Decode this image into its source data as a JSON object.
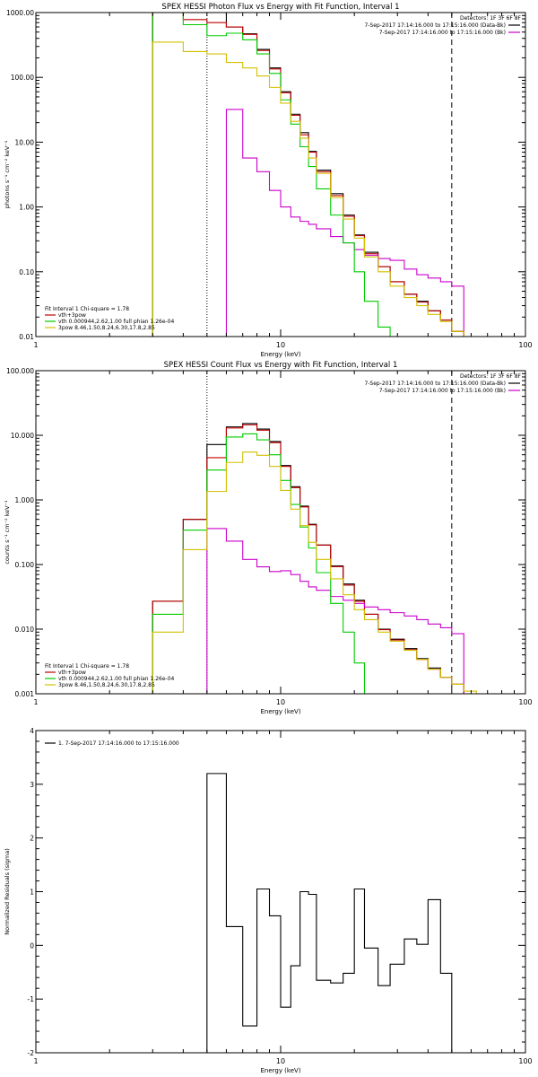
{
  "colors": {
    "total": "#000000",
    "vth_3pow": "#c00000",
    "vth": "#00cc00",
    "pow": "#d4c000",
    "bk": "#cc00cc",
    "axis": "#000000"
  },
  "chart_data": [
    {
      "id": "photon",
      "type": "line",
      "title": "SPEX HESSI Photon Flux vs Energy with Fit Function, Interval 1",
      "xlabel": "Energy (keV)",
      "ylabel": "photons s⁻¹ cm⁻² keV⁻¹",
      "xscale": "log",
      "yscale": "log",
      "xlim": [
        1,
        100
      ],
      "ylim": [
        0.01,
        1000
      ],
      "xticks": [
        {
          "v": 1,
          "label": "1"
        },
        {
          "v": 10,
          "label": "10"
        },
        {
          "v": 100,
          "label": "100"
        }
      ],
      "yticks": [
        {
          "v": 0.01,
          "label": "0.01"
        },
        {
          "v": 0.1,
          "label": "0.10"
        },
        {
          "v": 1,
          "label": "1.00"
        },
        {
          "v": 10,
          "label": "10.00"
        },
        {
          "v": 100,
          "label": "100.00"
        },
        {
          "v": 1000,
          "label": "1000.00"
        }
      ],
      "legend_right": [
        "Detectors: 1F 3F 6F 8F",
        "7-Sep-2017 17:14:16.000 to 17:15:16.000 (Data-Bk)",
        "7-Sep-2017 17:14:16.000 to 17:15:16.000 (Bk)"
      ],
      "legend_right_colors": [
        "",
        "total",
        "bk"
      ],
      "legend_left": [
        "Fit Interval 1   Chi-square = 1.78",
        "vth+3pow",
        "vth 0.000944,2.62,1.00  full phian 1.26e-04",
        "3pow 8.46,1.50,8.24,6.30,17.8,2.85"
      ],
      "legend_left_colors": [
        "",
        "vth_3pow",
        "vth",
        "pow"
      ],
      "edges": [
        3,
        4,
        5,
        6,
        7,
        8,
        9,
        10,
        11,
        12,
        13,
        14,
        16,
        18,
        20,
        22,
        25,
        28,
        32,
        36,
        40,
        45,
        50,
        56,
        63
      ],
      "series": [
        {
          "key": "total",
          "values": [
            1000,
            1000,
            1000,
            600,
            470,
            270,
            140,
            60,
            27,
            14,
            7.2,
            3.7,
            1.6,
            0.75,
            0.37,
            0.2,
            0.12,
            0.07,
            0.045,
            0.035,
            0.025,
            0.018,
            0.012,
            null
          ]
        },
        {
          "key": "vth_3pow",
          "values": [
            1000,
            780,
            700,
            600,
            460,
            260,
            135,
            58,
            26,
            13,
            7,
            3.5,
            1.5,
            0.72,
            0.36,
            0.19,
            0.12,
            0.07,
            0.045,
            0.034,
            0.025,
            0.018,
            0.012,
            null
          ]
        },
        {
          "key": "vth",
          "values": [
            1000,
            650,
            440,
            480,
            380,
            230,
            115,
            45,
            19,
            8.5,
            4.2,
            1.9,
            0.75,
            0.28,
            0.1,
            0.035,
            0.014,
            0.01,
            null,
            null,
            null,
            null,
            null,
            null
          ]
        },
        {
          "key": "pow",
          "values": [
            350,
            250,
            230,
            170,
            140,
            105,
            70,
            40,
            21,
            11.5,
            5.7,
            3.3,
            1.4,
            0.65,
            0.33,
            0.17,
            0.1,
            0.06,
            0.04,
            0.03,
            0.022,
            0.017,
            0.012,
            0.01
          ]
        },
        {
          "key": "bk",
          "values": [
            null,
            null,
            0.01,
            32,
            5.7,
            3.5,
            1.8,
            1.0,
            0.7,
            0.6,
            0.54,
            0.46,
            0.35,
            0.28,
            0.22,
            0.18,
            0.16,
            0.15,
            0.11,
            0.09,
            0.08,
            0.07,
            0.06,
            null
          ]
        }
      ],
      "dotted_x": 5.0,
      "dashed_x": 50.0
    },
    {
      "id": "count",
      "type": "line",
      "title": "SPEX HESSI Count Flux vs Energy with Fit Function, Interval 1",
      "xlabel": "Energy (keV)",
      "ylabel": "counts s⁻¹ cm⁻² keV⁻¹",
      "xscale": "log",
      "yscale": "log",
      "xlim": [
        1,
        100
      ],
      "ylim": [
        0.001,
        100
      ],
      "xticks": [
        {
          "v": 1,
          "label": "1"
        },
        {
          "v": 10,
          "label": "10"
        },
        {
          "v": 100,
          "label": "100"
        }
      ],
      "yticks": [
        {
          "v": 0.001,
          "label": "0.001"
        },
        {
          "v": 0.01,
          "label": "0.010"
        },
        {
          "v": 0.1,
          "label": "0.100"
        },
        {
          "v": 1,
          "label": "1.000"
        },
        {
          "v": 10,
          "label": "10.000"
        },
        {
          "v": 100,
          "label": "100.000"
        }
      ],
      "legend_right": [
        "Detectors: 1F 3F 6F 8F",
        "7-Sep-2017 17:14:16.000 to 17:15:16.000 (Data-Bk)",
        "7-Sep-2017 17:14:16.000 to 17:15:16.000 (Bk)"
      ],
      "legend_right_colors": [
        "",
        "total",
        "bk"
      ],
      "legend_left": [
        "Fit Interval 1   Chi-square = 1.78",
        "vth+3pow",
        "vth 0.000944,2.62,1.00  full phian 1.26e-04",
        "3pow 8.46,1.50,8.24,6.30,17.8,2.85"
      ],
      "legend_left_colors": [
        "",
        "vth_3pow",
        "vth",
        "pow"
      ],
      "edges": [
        3,
        4,
        5,
        6,
        7,
        8,
        9,
        10,
        11,
        12,
        13,
        14,
        16,
        18,
        20,
        22,
        25,
        28,
        32,
        36,
        40,
        45,
        50,
        56,
        63,
        70
      ],
      "series": [
        {
          "key": "total",
          "values": [
            0.027,
            0.5,
            7.2,
            13.5,
            15.2,
            12.5,
            8.0,
            3.4,
            1.6,
            0.8,
            0.42,
            0.2,
            0.095,
            0.05,
            0.028,
            0.017,
            0.01,
            0.007,
            0.005,
            0.0035,
            0.0025,
            0.0018,
            0.0014,
            null,
            null
          ]
        },
        {
          "key": "vth_3pow",
          "values": [
            0.027,
            0.5,
            4.5,
            13.0,
            14.5,
            12.0,
            7.7,
            3.3,
            1.55,
            0.78,
            0.41,
            0.2,
            0.093,
            0.048,
            0.027,
            0.017,
            0.0098,
            0.0068,
            0.0048,
            0.0034,
            0.0024,
            0.0018,
            0.0014,
            null,
            null
          ]
        },
        {
          "key": "vth",
          "values": [
            0.017,
            0.34,
            2.9,
            9.4,
            10.5,
            8.5,
            5.0,
            2.0,
            0.85,
            0.38,
            0.18,
            0.075,
            0.025,
            0.009,
            0.003,
            0.001,
            null,
            null,
            null,
            null,
            null,
            null,
            null,
            null,
            null
          ]
        },
        {
          "key": "pow",
          "values": [
            0.009,
            0.17,
            1.35,
            3.8,
            5.5,
            4.9,
            3.3,
            1.4,
            0.72,
            0.4,
            0.22,
            0.12,
            0.06,
            0.034,
            0.02,
            0.014,
            0.009,
            0.0065,
            0.0047,
            0.0034,
            0.0024,
            0.0018,
            0.0014,
            0.0011,
            0.001
          ]
        },
        {
          "key": "bk",
          "values": [
            null,
            null,
            0.36,
            0.23,
            0.12,
            0.092,
            0.078,
            0.08,
            0.07,
            0.055,
            0.045,
            0.04,
            0.032,
            0.028,
            0.025,
            0.022,
            0.02,
            0.018,
            0.016,
            0.014,
            0.012,
            0.0105,
            0.0085,
            null,
            null
          ]
        }
      ],
      "dotted_x": 5.0,
      "dashed_x": 50.0
    },
    {
      "id": "residuals",
      "type": "line",
      "title": "",
      "xlabel": "Energy (keV)",
      "ylabel": "Normalized Residuals (sigma)",
      "xscale": "log",
      "yscale": "linear",
      "xlim": [
        1,
        100
      ],
      "ylim": [
        -2,
        4
      ],
      "xticks": [
        {
          "v": 1,
          "label": "1"
        },
        {
          "v": 10,
          "label": "10"
        },
        {
          "v": 100,
          "label": "100"
        }
      ],
      "yticks": [
        {
          "v": -2,
          "label": "-2"
        },
        {
          "v": -1,
          "label": "-1"
        },
        {
          "v": 0,
          "label": "0"
        },
        {
          "v": 1,
          "label": "1"
        },
        {
          "v": 2,
          "label": "2"
        },
        {
          "v": 3,
          "label": "3"
        },
        {
          "v": 4,
          "label": "4"
        }
      ],
      "legend_left": [
        "1.  7-Sep-2017 17:14:16.000 to 17:15:16.000"
      ],
      "legend_left_colors": [
        "total"
      ],
      "edges": [
        5,
        6,
        7,
        8,
        9,
        10,
        11,
        12,
        13,
        14,
        16,
        18,
        20,
        22,
        25,
        28,
        32,
        36,
        40,
        45,
        50
      ],
      "series": [
        {
          "key": "total",
          "values": [
            3.2,
            0.35,
            -1.5,
            1.05,
            0.55,
            -1.15,
            -0.38,
            1.0,
            0.95,
            -0.65,
            -0.7,
            -0.52,
            1.05,
            -0.05,
            -0.75,
            -0.35,
            0.12,
            0.02,
            0.85,
            -0.52
          ]
        }
      ]
    }
  ]
}
